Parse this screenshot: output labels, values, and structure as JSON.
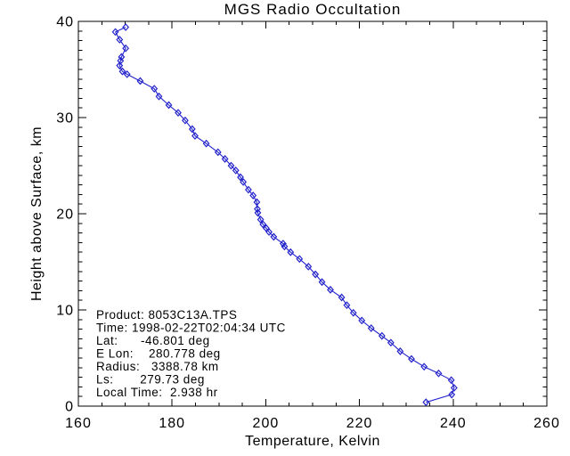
{
  "window": {
    "background": "#ffffff",
    "text_color": "#000000"
  },
  "chart_data": {
    "type": "line",
    "title": "MGS Radio Occultation",
    "xlabel": "Temperature, Kelvin",
    "ylabel": "Height above Surface, km",
    "xlim": [
      160,
      260
    ],
    "ylim": [
      0,
      40
    ],
    "x_major_step": 20,
    "x_minor_step": 5,
    "y_major_step": 10,
    "y_minor_step": 1,
    "x_tick_labels": [
      "160",
      "180",
      "200",
      "220",
      "240",
      "260"
    ],
    "y_tick_labels": [
      "0",
      "10",
      "20",
      "30",
      "40"
    ],
    "grid": false,
    "legend": "none",
    "frame": "box",
    "tick_direction": "in",
    "line_color": "#2222cc",
    "marker": "open-diamond",
    "series": [
      {
        "name": "temperature-profile",
        "x_is": "temperature_K",
        "y_is": "height_km",
        "points": [
          [
            170.1,
            39.4
          ],
          [
            167.9,
            38.9
          ],
          [
            168.8,
            38.1
          ],
          [
            170.1,
            37.2
          ],
          [
            169.2,
            36.3
          ],
          [
            169.0,
            35.9
          ],
          [
            168.8,
            35.4
          ],
          [
            169.4,
            34.8
          ],
          [
            170.4,
            34.5
          ],
          [
            173.2,
            33.8
          ],
          [
            176.2,
            33.0
          ],
          [
            177.2,
            32.2
          ],
          [
            179.3,
            31.3
          ],
          [
            181.3,
            30.5
          ],
          [
            182.8,
            29.7
          ],
          [
            184.3,
            28.8
          ],
          [
            184.9,
            28.1
          ],
          [
            187.3,
            27.3
          ],
          [
            189.8,
            26.4
          ],
          [
            191.3,
            25.7
          ],
          [
            192.6,
            25.0
          ],
          [
            193.6,
            24.5
          ],
          [
            194.6,
            23.8
          ],
          [
            195.2,
            23.3
          ],
          [
            196.3,
            22.5
          ],
          [
            197.3,
            21.9
          ],
          [
            198.1,
            21.2
          ],
          [
            198.2,
            20.5
          ],
          [
            198.3,
            20.1
          ],
          [
            198.9,
            19.4
          ],
          [
            199.4,
            18.9
          ],
          [
            200.1,
            18.5
          ],
          [
            200.7,
            18.1
          ],
          [
            201.7,
            17.6
          ],
          [
            203.7,
            16.9
          ],
          [
            204.0,
            16.6
          ],
          [
            205.3,
            16.0
          ],
          [
            207.2,
            15.3
          ],
          [
            209.1,
            14.5
          ],
          [
            210.6,
            13.7
          ],
          [
            212.0,
            12.9
          ],
          [
            213.8,
            12.1
          ],
          [
            216.2,
            11.3
          ],
          [
            217.3,
            10.5
          ],
          [
            218.7,
            9.7
          ],
          [
            220.5,
            8.9
          ],
          [
            222.5,
            8.1
          ],
          [
            224.8,
            7.3
          ],
          [
            226.7,
            6.6
          ],
          [
            228.7,
            5.7
          ],
          [
            231.1,
            4.9
          ],
          [
            233.8,
            4.1
          ],
          [
            236.9,
            3.4
          ],
          [
            239.6,
            2.7
          ],
          [
            240.2,
            1.9
          ],
          [
            239.7,
            1.2
          ],
          [
            234.2,
            0.4
          ]
        ]
      }
    ],
    "annotation": {
      "lines": [
        "Product: 8053C13A.TPS",
        "Time: 1998-02-22T02:04:34 UTC",
        "Lat:      -46.801 deg",
        "E Lon:    280.778 deg",
        "Radius:   3388.78 km",
        "Ls:       279.73 deg",
        "Local Time:  2.938 hr"
      ]
    }
  }
}
